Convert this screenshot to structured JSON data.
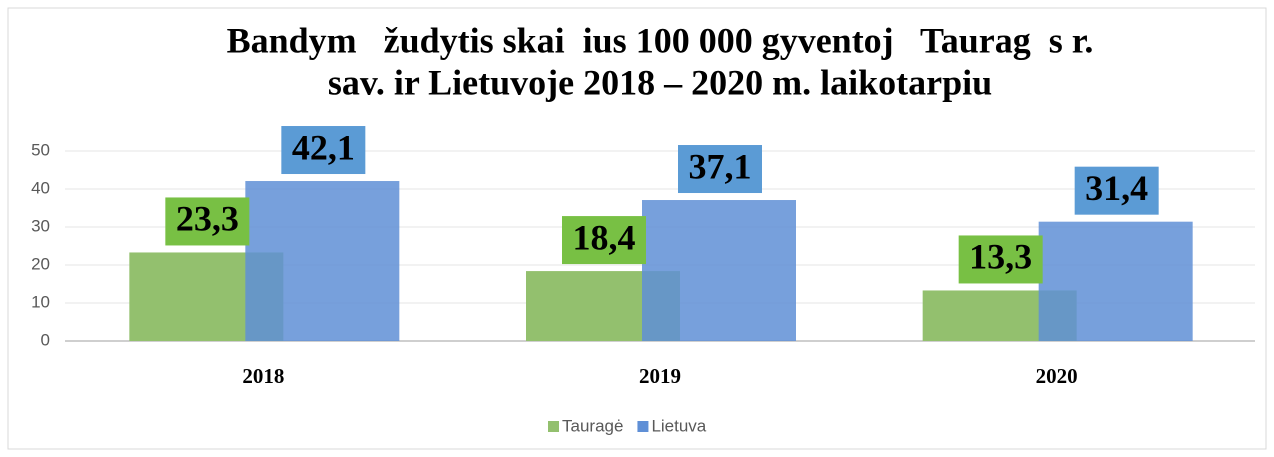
{
  "chart_data": {
    "type": "bar",
    "title": [
      "Bandym   žudytis skai  ius 100 000 gyventoj   Taurag  s r.",
      "sav. ir Lietuvoje 2018 – 2020 m. laikotarpiu"
    ],
    "categories": [
      "2018",
      "2019",
      "2020"
    ],
    "series": [
      {
        "name": "Tauragė",
        "color": "#93c06e",
        "label_color": "#78c044",
        "values": [
          23.3,
          18.4,
          13.3
        ],
        "value_labels": [
          "23,3",
          "18,4",
          "13,3"
        ]
      },
      {
        "name": "Lietuva",
        "color": "#5f8fd6",
        "label_color": "#5b9bd5",
        "values": [
          42.1,
          37.1,
          31.4
        ],
        "value_labels": [
          "42,1",
          "37,1",
          "31,4"
        ]
      }
    ],
    "ylim": [
      0,
      50
    ],
    "yticks": [
      0,
      10,
      20,
      30,
      40,
      50
    ],
    "grid": true,
    "legend": "bottom"
  }
}
